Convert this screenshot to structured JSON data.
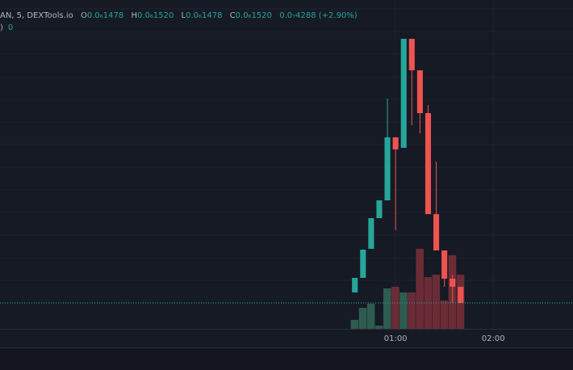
{
  "header": {
    "symbol": "AN, 5, DEXTools.io",
    "o_label": "O",
    "o": "0.0₆1478",
    "h_label": "H",
    "h": "0.0₆1520",
    "l_label": "L",
    "l": "0.0₆1478",
    "c_label": "C",
    "c": "0.0₆1520",
    "change": "0.0₇4288 (+2.90%)",
    "line2a": ")",
    "line2b": "0"
  },
  "chart_data": {
    "type": "candlestick",
    "x": [
      35,
      40,
      45,
      50,
      55,
      60,
      65,
      70,
      75,
      80,
      85,
      90,
      95,
      100
    ],
    "open": [
      45,
      63,
      99,
      137,
      159,
      237,
      224,
      359,
      320,
      267,
      142,
      97,
      62,
      52
    ],
    "high": [
      63,
      98,
      137,
      159,
      285,
      237,
      359,
      359,
      320,
      277,
      207,
      97,
      67,
      52
    ],
    "low": [
      45,
      63,
      99,
      137,
      159,
      122,
      224,
      252,
      242,
      142,
      97,
      52,
      32,
      32
    ],
    "close": [
      63,
      98,
      137,
      159,
      237,
      222,
      359,
      320,
      267,
      142,
      97,
      62,
      52,
      32
    ],
    "volume": [
      11,
      26,
      31,
      4,
      50,
      52,
      45,
      45,
      99,
      64,
      67,
      35,
      91,
      67
    ],
    "up_color": "#26a69a",
    "down_color": "#ef5350",
    "up_volume_color": "#2e5c4f",
    "down_volume_color": "#6b2c36",
    "last_price": 32,
    "xlim": [
      -183,
      169
    ],
    "ylim": [
      0,
      407
    ],
    "xticks": [
      {
        "value": 60,
        "label": "01:00"
      },
      {
        "value": 120,
        "label": "02:00"
      }
    ]
  }
}
